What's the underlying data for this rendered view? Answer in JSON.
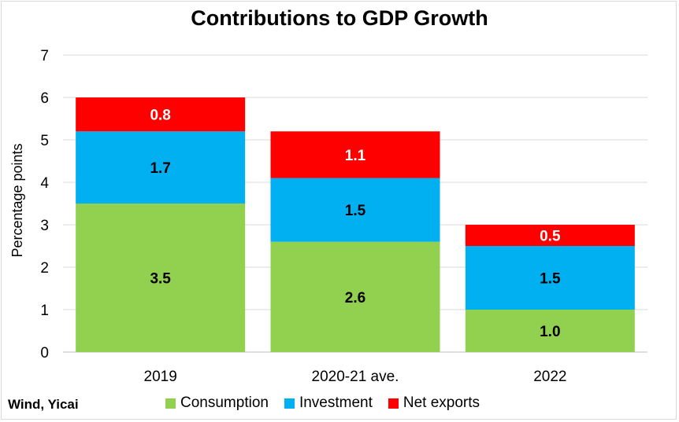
{
  "chart_data": {
    "type": "bar",
    "stacked": true,
    "title": "Contributions to GDP Growth",
    "xlabel": "",
    "ylabel": "Percentage points",
    "ylim": [
      0,
      7
    ],
    "yticks": [
      "0",
      "1",
      "2",
      "3",
      "4",
      "5",
      "6",
      "7"
    ],
    "grid": true,
    "legend_position": "bottom",
    "categories": [
      "2019",
      "2020-21 ave.",
      "2022"
    ],
    "series": [
      {
        "name": "Consumption",
        "color": "#92d050",
        "values": [
          3.5,
          2.6,
          1.0
        ],
        "labels": [
          "3.5",
          "2.6",
          "1.0"
        ],
        "label_color": "#000000"
      },
      {
        "name": "Investment",
        "color": "#00b0f0",
        "values": [
          1.7,
          1.5,
          1.5
        ],
        "labels": [
          "1.7",
          "1.5",
          "1.5"
        ],
        "label_color": "#000000"
      },
      {
        "name": "Net exports",
        "color": "#ff0000",
        "values": [
          0.8,
          1.1,
          0.5
        ],
        "labels": [
          "0.8",
          "1.1",
          "0.5"
        ],
        "label_color": "#ffffff"
      }
    ],
    "source": "Wind, Yicai"
  }
}
